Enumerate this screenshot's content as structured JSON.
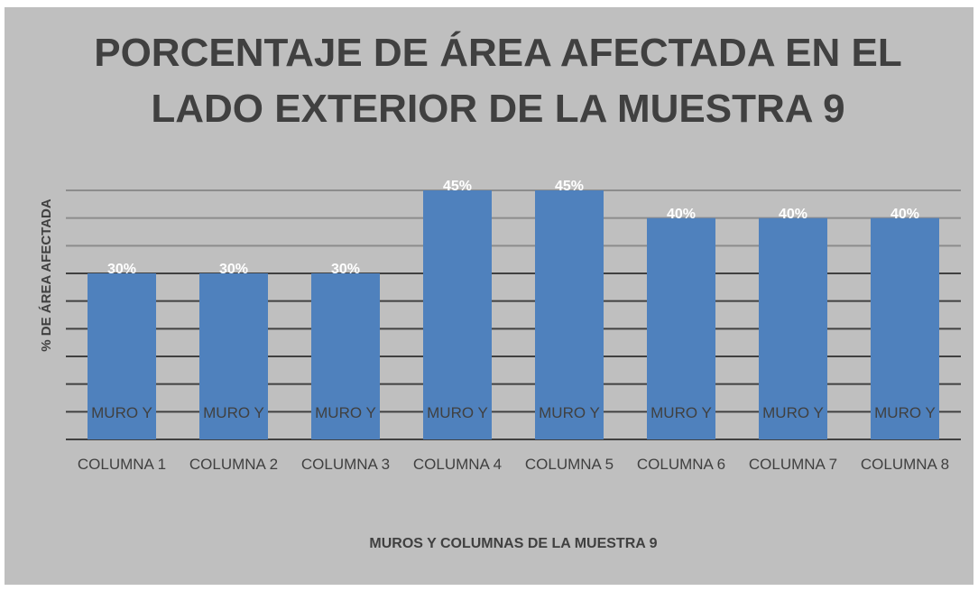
{
  "chart_data": {
    "type": "bar",
    "title": "PORCENTAJE DE ÁREA AFECTADA EN EL LADO EXTERIOR DE LA MUESTRA 9",
    "x_label": "MUROS Y COLUMNAS DE LA MUESTRA 9",
    "y_label": "% DE ÁREA AFECTADA",
    "categories": [
      "MURO Y COLUMNA 1",
      "MURO Y COLUMNA 2",
      "MURO Y COLUMNA 3",
      "MURO Y COLUMNA 4",
      "MURO Y COLUMNA 5",
      "MURO Y COLUMNA 6",
      "MURO Y COLUMNA 7",
      "MURO Y COLUMNA 8"
    ],
    "values": [
      30,
      30,
      30,
      45,
      45,
      40,
      40,
      40
    ],
    "value_labels": [
      "30%",
      "30%",
      "30%",
      "45%",
      "45%",
      "40%",
      "40%",
      "40%"
    ],
    "color": "#4f81bd",
    "ylim": [
      0,
      45
    ],
    "yticks": [
      0,
      5,
      10,
      15,
      20,
      25,
      30,
      35,
      40,
      45
    ],
    "grid": true
  }
}
